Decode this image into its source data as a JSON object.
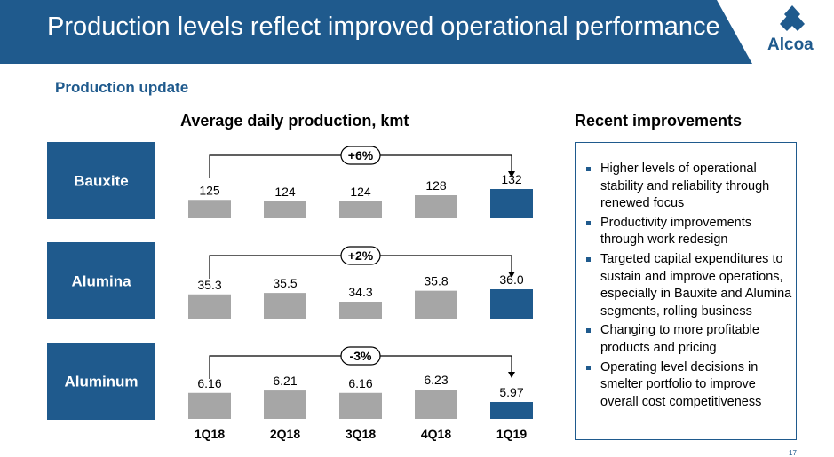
{
  "header": {
    "title": "Production levels reflect improved operational performance",
    "brand": "Alcoa",
    "bg_color": "#1f5a8d"
  },
  "subtitle": "Production update",
  "improvements": {
    "title": "Recent improvements",
    "items": [
      "Higher levels of operational stability and reliability through renewed focus",
      "Productivity improvements through work redesign",
      "Targeted capital expenditures to sustain and improve operations, especially in Bauxite and Alumina segments, rolling business",
      "Changing to more profitable products and pricing",
      "Operating level decisions in smelter portfolio to improve overall cost competitiveness"
    ]
  },
  "page_number": "17",
  "chart_data": {
    "type": "bar",
    "title": "Average daily production, kmt",
    "categories": [
      "1Q18",
      "2Q18",
      "3Q18",
      "4Q18",
      "1Q19"
    ],
    "panels": [
      {
        "name": "Bauxite",
        "values": [
          125,
          124,
          124,
          128,
          132
        ],
        "labels": [
          "125",
          "124",
          "124",
          "128",
          "132"
        ],
        "change": "+6%"
      },
      {
        "name": "Alumina",
        "values": [
          35.3,
          35.5,
          34.3,
          35.8,
          36.0
        ],
        "labels": [
          "35.3",
          "35.5",
          "34.3",
          "35.8",
          "36.0"
        ],
        "change": "+2%"
      },
      {
        "name": "Aluminum",
        "values": [
          6.16,
          6.21,
          6.16,
          6.23,
          5.97
        ],
        "labels": [
          "6.16",
          "6.21",
          "6.16",
          "6.23",
          "5.97"
        ],
        "change": "-3%"
      }
    ],
    "colors": {
      "gray": "#a6a6a6",
      "highlight": "#1f5a8d",
      "panel_label_bg": "#1f5a8d"
    }
  }
}
